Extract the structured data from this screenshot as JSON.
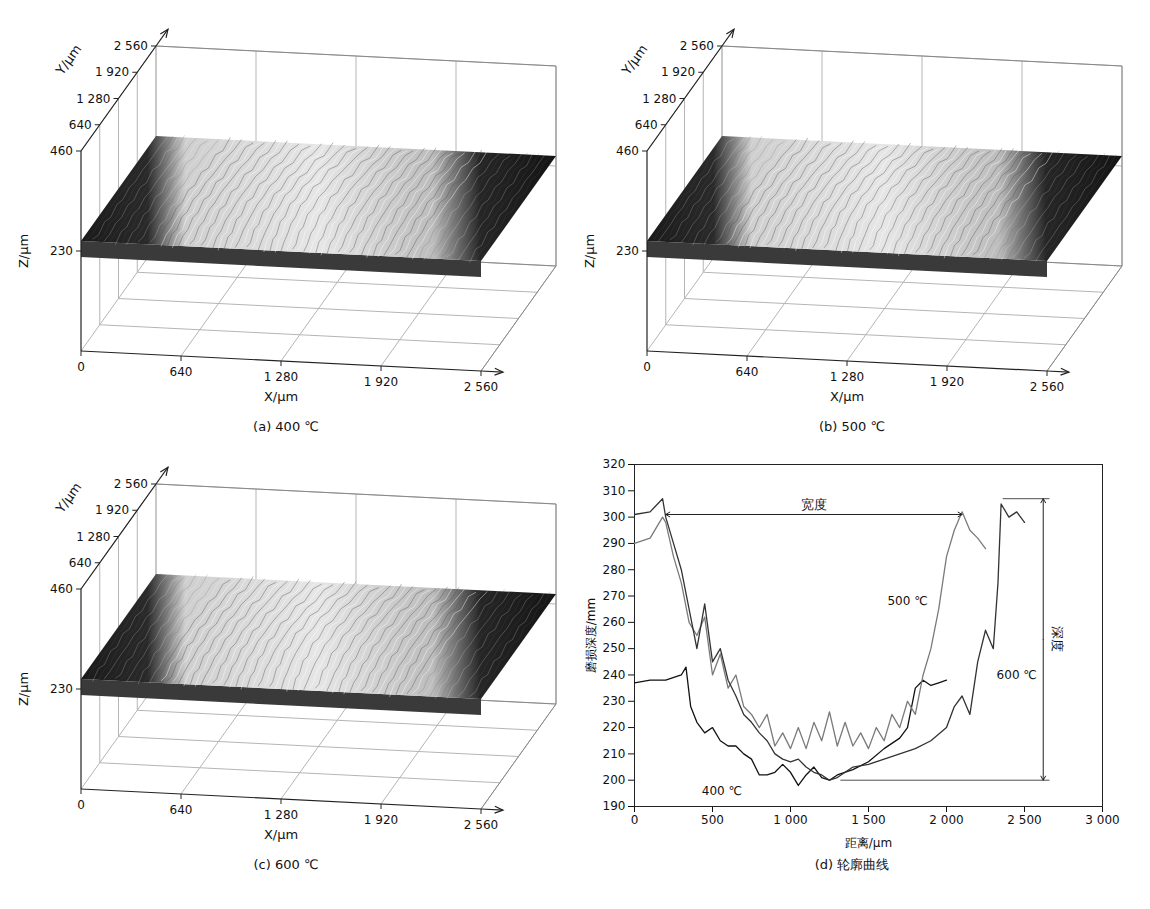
{
  "chart_data": [
    {
      "type": "surface3d",
      "title": "(a) 400 ℃",
      "x_label": "X/μm",
      "y_label": "Y/μm",
      "z_label": "Z/μm",
      "xlim": [
        0,
        2560
      ],
      "ylim": [
        0,
        2560
      ],
      "zlim": [
        0,
        460
      ],
      "xticks": [
        0,
        640,
        {
          "value": 1280,
          "label": "1 280"
        },
        {
          "value": 1920,
          "label": "1 920"
        },
        {
          "value": 2560,
          "label": "2 560"
        }
      ],
      "yticks": [
        640,
        {
          "value": 1280,
          "label": "1 280"
        },
        {
          "value": 1920,
          "label": "1 920"
        },
        {
          "value": 2560,
          "label": "2 560"
        }
      ],
      "zticks": [
        230,
        460
      ]
    },
    {
      "type": "surface3d",
      "title": "(b) 500 ℃",
      "x_label": "X/μm",
      "y_label": "Y/μm",
      "z_label": "Z/μm",
      "xlim": [
        0,
        2560
      ],
      "ylim": [
        0,
        2560
      ],
      "zlim": [
        0,
        460
      ],
      "xticks": [
        0,
        640,
        {
          "value": 1280,
          "label": "1 280"
        },
        {
          "value": 1920,
          "label": "1 920"
        },
        {
          "value": 2560,
          "label": "2 560"
        }
      ],
      "yticks": [
        640,
        {
          "value": 1280,
          "label": "1 280"
        },
        {
          "value": 1920,
          "label": "1 920"
        },
        {
          "value": 2560,
          "label": "2 560"
        }
      ],
      "zticks": [
        230,
        460
      ]
    },
    {
      "type": "surface3d",
      "title": "(c) 600 ℃",
      "x_label": "X/μm",
      "y_label": "Y/μm",
      "z_label": "Z/μm",
      "xlim": [
        0,
        2560
      ],
      "ylim": [
        0,
        2560
      ],
      "zlim": [
        0,
        460
      ],
      "xticks": [
        0,
        640,
        {
          "value": 1280,
          "label": "1 280"
        },
        {
          "value": 1920,
          "label": "1 920"
        },
        {
          "value": 2560,
          "label": "2 560"
        }
      ],
      "yticks": [
        640,
        {
          "value": 1280,
          "label": "1 280"
        },
        {
          "value": 1920,
          "label": "1 920"
        },
        {
          "value": 2560,
          "label": "2 560"
        }
      ],
      "zticks": [
        230,
        460
      ]
    },
    {
      "type": "line",
      "title": "(d) 轮廓曲线",
      "x_label": "距离/μm",
      "y_label": "磨损深度/mm",
      "xlim": [
        0,
        3000
      ],
      "ylim": [
        190,
        320
      ],
      "xticks": [
        0,
        500,
        {
          "value": 1000,
          "label": "1 000"
        },
        {
          "value": 1500,
          "label": "1 500"
        },
        {
          "value": 2000,
          "label": "2 000"
        },
        {
          "value": 2500,
          "label": "2 500"
        },
        {
          "value": 3000,
          "label": "3 000"
        }
      ],
      "yticks": [
        190,
        200,
        210,
        220,
        230,
        240,
        250,
        260,
        270,
        280,
        290,
        300,
        310,
        320
      ],
      "grid": false,
      "series": [
        {
          "name": "400 ℃",
          "color": "#111111",
          "label_position": [
            560,
            196
          ],
          "x": [
            0,
            100,
            200,
            300,
            330,
            360,
            400,
            450,
            500,
            550,
            600,
            650,
            700,
            750,
            800,
            850,
            900,
            950,
            1000,
            1050,
            1100,
            1150,
            1200,
            1250,
            1300,
            1400,
            1500,
            1600,
            1700,
            1750,
            1800,
            1850,
            1900,
            1950,
            2000
          ],
          "values": [
            237,
            238,
            238,
            240,
            243,
            228,
            222,
            218,
            220,
            215,
            213,
            213,
            210,
            208,
            202,
            202,
            203,
            206,
            203,
            198,
            202,
            205,
            201,
            200,
            202,
            204,
            207,
            212,
            216,
            220,
            235,
            238,
            236,
            237,
            238
          ]
        },
        {
          "name": "500 ℃",
          "color": "#7a7a7a",
          "label_position": [
            1750,
            268
          ],
          "x": [
            0,
            100,
            180,
            200,
            250,
            300,
            350,
            400,
            450,
            500,
            550,
            600,
            650,
            700,
            750,
            800,
            850,
            900,
            950,
            1000,
            1050,
            1100,
            1150,
            1200,
            1250,
            1300,
            1350,
            1400,
            1450,
            1500,
            1550,
            1600,
            1650,
            1700,
            1750,
            1800,
            1850,
            1900,
            1950,
            2000,
            2050,
            2100,
            2150,
            2200,
            2250
          ],
          "values": [
            290,
            292,
            300,
            298,
            285,
            275,
            260,
            255,
            262,
            240,
            248,
            235,
            240,
            228,
            225,
            220,
            225,
            213,
            218,
            212,
            220,
            212,
            222,
            215,
            226,
            213,
            222,
            213,
            218,
            212,
            220,
            215,
            225,
            220,
            230,
            225,
            240,
            250,
            265,
            285,
            295,
            302,
            295,
            292,
            288
          ]
        },
        {
          "name": "600 ℃",
          "color": "#333333",
          "label_position": [
            2450,
            240
          ],
          "x": [
            0,
            100,
            180,
            200,
            250,
            300,
            350,
            400,
            450,
            500,
            550,
            600,
            650,
            700,
            750,
            800,
            850,
            900,
            950,
            1000,
            1050,
            1100,
            1150,
            1200,
            1250,
            1300,
            1350,
            1400,
            1500,
            1600,
            1700,
            1800,
            1900,
            2000,
            2050,
            2100,
            2150,
            2200,
            2250,
            2300,
            2330,
            2350,
            2400,
            2450,
            2500
          ],
          "values": [
            301,
            302,
            307,
            300,
            290,
            280,
            265,
            250,
            267,
            245,
            250,
            238,
            232,
            225,
            222,
            218,
            215,
            210,
            208,
            207,
            208,
            205,
            203,
            202,
            200,
            201,
            203,
            205,
            206,
            208,
            210,
            212,
            215,
            220,
            228,
            232,
            225,
            245,
            257,
            250,
            275,
            305,
            300,
            302,
            298
          ]
        }
      ],
      "annotations": [
        {
          "text": "宽度",
          "kind": "width",
          "x1": 200,
          "x2": 2100,
          "y": 301
        },
        {
          "text": "深度",
          "kind": "depth",
          "x": 2620,
          "y1": 307,
          "y2": 200
        }
      ]
    }
  ]
}
